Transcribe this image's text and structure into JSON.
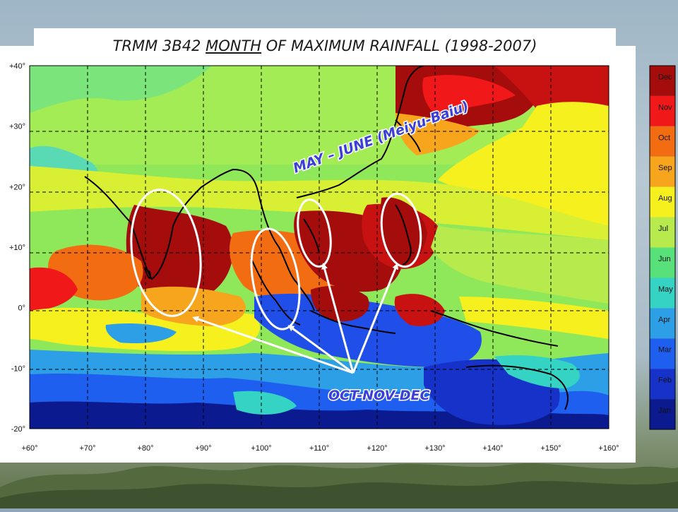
{
  "title": {
    "pre": "TRMM 3B42 ",
    "underlined": "MONTH",
    "post": " OF MAXIMUM RAINFALL (1998-2007)"
  },
  "map": {
    "lon_range": [
      60,
      160
    ],
    "lat_range": [
      -20,
      40
    ],
    "lon_ticks": [
      "+60°",
      "+70°",
      "+80°",
      "+90°",
      "+100°",
      "+110°",
      "+120°",
      "+130°",
      "+140°",
      "+150°",
      "+160°"
    ],
    "lat_ticks": [
      "+40°",
      "+30°",
      "+20°",
      "+10°",
      "0°",
      "-10°",
      "-20°"
    ],
    "grid": true
  },
  "colorbar": {
    "labels": [
      "Dec",
      "Nov",
      "Oct",
      "Sep",
      "Aug",
      "Jul",
      "Jun",
      "May",
      "Apr",
      "Mar",
      "Feb",
      "Jan"
    ],
    "colors": [
      "#a50c0c",
      "#f01818",
      "#f26d12",
      "#f7a51c",
      "#f5f01e",
      "#b6ea4d",
      "#58e07a",
      "#35d3c4",
      "#2c9fe6",
      "#1f5ff0",
      "#1732c9",
      "#0b1a8f"
    ]
  },
  "annotations": {
    "monsoon_label": "MAY – JUNE (Meiyu-Baiu)",
    "ond_label": "OCT-NOV-DEC"
  },
  "palette": {
    "ocean_green": "#8fe85a",
    "ocean_yellow": "#f5f01e",
    "dark_red": "#a50c0c",
    "blue": "#1f4fe8",
    "arrow": "#ffffff"
  }
}
